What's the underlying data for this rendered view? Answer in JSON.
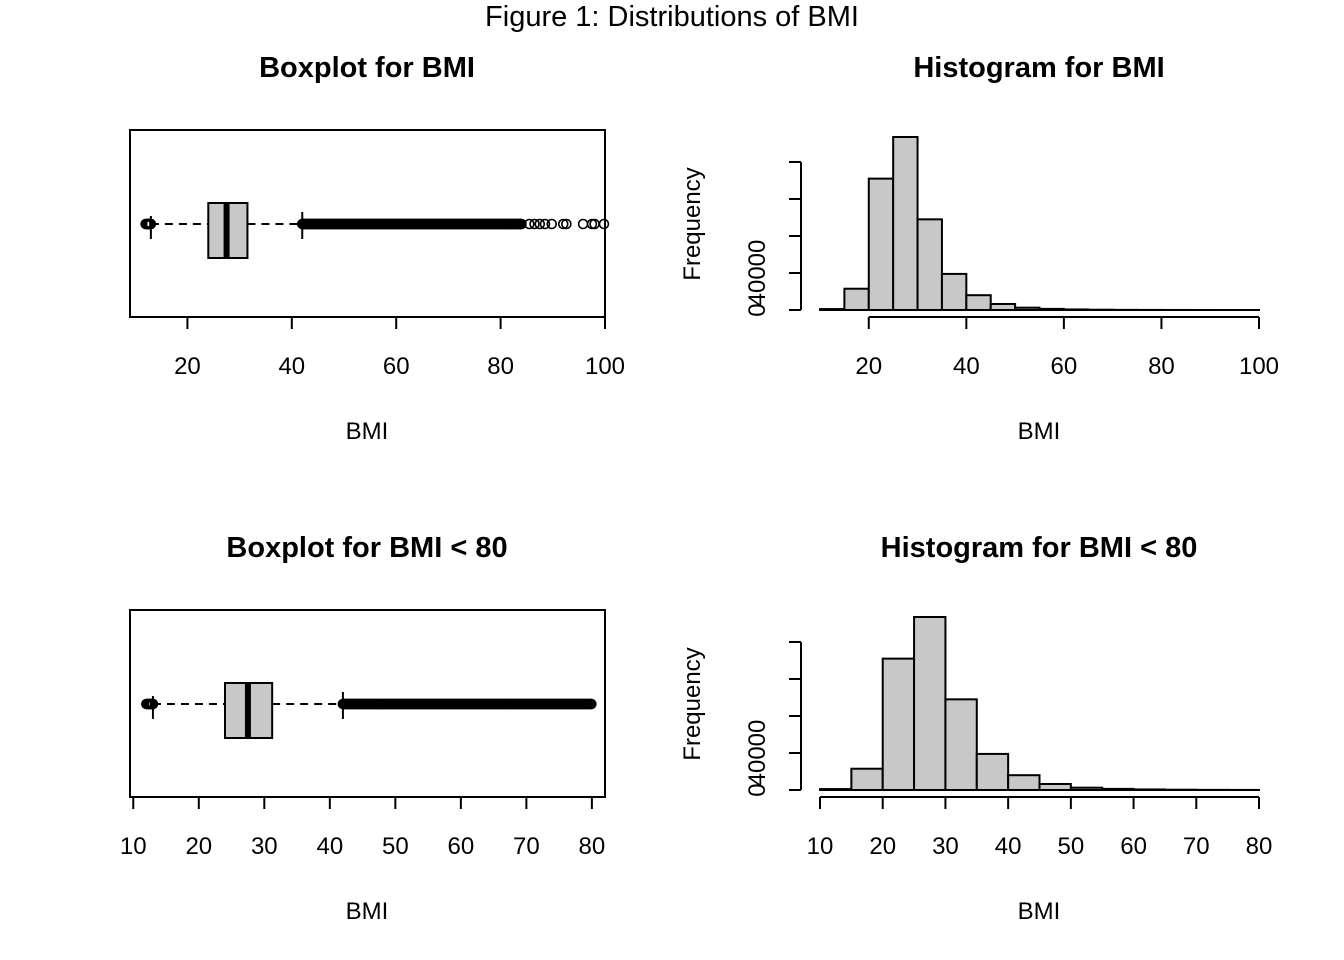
{
  "figure_title": "Figure 1: Distributions of BMI",
  "colors": {
    "fill": "#c8c8c8",
    "stroke": "#000000",
    "background": "#ffffff"
  },
  "chart_data": [
    {
      "type": "box",
      "title": "Boxplot for BMI",
      "xlabel": "BMI",
      "ylabel": "",
      "xlim": [
        9,
        100
      ],
      "xticks": [
        20,
        40,
        60,
        80,
        100
      ],
      "box": {
        "lower_whisker": 13,
        "q1": 24,
        "median": 27.5,
        "q3": 31.5,
        "upper_whisker": 42
      },
      "outliers_dense": [
        [
          12,
          13
        ],
        [
          42,
          84
        ]
      ],
      "outliers_sparse": [
        85.5,
        86.5,
        87.5,
        88.5,
        89.8,
        92,
        92.6,
        95.8,
        97.5,
        98,
        99.8
      ]
    },
    {
      "type": "bar",
      "title": "Histogram for BMI",
      "xlabel": "BMI",
      "ylabel": "Frequency",
      "xlim": [
        10,
        100
      ],
      "xticks": [
        20,
        40,
        60,
        80,
        100
      ],
      "yticks": [
        0,
        40000,
        80000,
        120000,
        160000
      ],
      "ytick_labels": [
        "0",
        "40000",
        "",
        "",
        ""
      ],
      "bin_width": 5,
      "bins": [
        10,
        15,
        20,
        25,
        30,
        35,
        40,
        45,
        50,
        55,
        60,
        65,
        70,
        75,
        80,
        85,
        90,
        95
      ],
      "values": [
        1000,
        23000,
        142000,
        187000,
        98000,
        39000,
        16000,
        6500,
        2500,
        1200,
        600,
        300,
        150,
        80,
        40,
        25,
        15,
        10
      ]
    },
    {
      "type": "box",
      "title": "Boxplot for BMI < 80",
      "xlabel": "BMI",
      "ylabel": "",
      "xlim": [
        9.5,
        82
      ],
      "xticks": [
        10,
        20,
        30,
        40,
        50,
        60,
        70,
        80
      ],
      "box": {
        "lower_whisker": 13,
        "q1": 24,
        "median": 27.5,
        "q3": 31.2,
        "upper_whisker": 42
      },
      "outliers_dense": [
        [
          12,
          13
        ],
        [
          42,
          80
        ]
      ],
      "outliers_sparse": []
    },
    {
      "type": "bar",
      "title": "Histogram for BMI < 80",
      "xlabel": "BMI",
      "ylabel": "Frequency",
      "xlim": [
        10,
        80
      ],
      "xticks": [
        10,
        20,
        30,
        40,
        50,
        60,
        70,
        80
      ],
      "yticks": [
        0,
        40000,
        80000,
        120000,
        160000
      ],
      "ytick_labels": [
        "0",
        "40000",
        "",
        "",
        ""
      ],
      "bin_width": 5,
      "bins": [
        10,
        15,
        20,
        25,
        30,
        35,
        40,
        45,
        50,
        55,
        60,
        65,
        70,
        75
      ],
      "values": [
        1000,
        23000,
        142000,
        187000,
        98000,
        39000,
        16000,
        6500,
        2500,
        1200,
        600,
        300,
        150,
        80
      ]
    }
  ]
}
